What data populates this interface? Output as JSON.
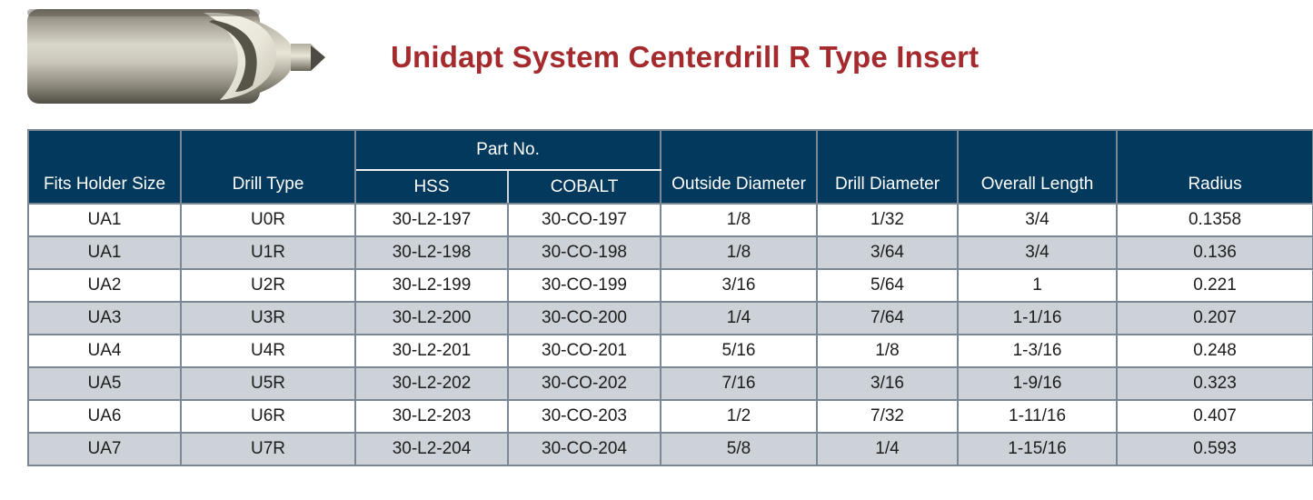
{
  "page": {
    "title": "Unidapt System Centerdrill R Type Insert"
  },
  "image": {
    "name": "centerdrill-r-type-insert-photo",
    "description": "metallic centerdrill insert with radius flute and pilot tip"
  },
  "table": {
    "header": {
      "fits_holder_size": "Fits Holder Size",
      "drill_type": "Drill Type",
      "part_no_group": "Part No.",
      "hss": "HSS",
      "cobalt": "COBALT",
      "outside_diameter": "Outside Diameter",
      "drill_diameter": "Drill Diameter",
      "overall_length": "Overall Length",
      "radius": "Radius"
    },
    "rows": [
      [
        "UA1",
        "U0R",
        "30-L2-197",
        "30-CO-197",
        "1/8",
        "1/32",
        "3/4",
        "0.1358"
      ],
      [
        "UA1",
        "U1R",
        "30-L2-198",
        "30-CO-198",
        "1/8",
        "3/64",
        "3/4",
        "0.136"
      ],
      [
        "UA2",
        "U2R",
        "30-L2-199",
        "30-CO-199",
        "3/16",
        "5/64",
        "1",
        "0.221"
      ],
      [
        "UA3",
        "U3R",
        "30-L2-200",
        "30-CO-200",
        "1/4",
        "7/64",
        "1-1/16",
        "0.207"
      ],
      [
        "UA4",
        "U4R",
        "30-L2-201",
        "30-CO-201",
        "5/16",
        "1/8",
        "1-3/16",
        "0.248"
      ],
      [
        "UA5",
        "U5R",
        "30-L2-202",
        "30-CO-202",
        "7/16",
        "3/16",
        "1-9/16",
        "0.323"
      ],
      [
        "UA6",
        "U6R",
        "30-L2-203",
        "30-CO-203",
        "1/2",
        "7/32",
        "1-11/16",
        "0.407"
      ],
      [
        "UA7",
        "U7R",
        "30-L2-204",
        "30-CO-204",
        "5/8",
        "1/4",
        "1-15/16",
        "0.593"
      ]
    ]
  },
  "colors": {
    "header_bg": "#04395e",
    "row_bg": "#ffffff",
    "row_alt_bg": "#ccd2d8",
    "grid_line": "#7a8795",
    "title_text": "#a52a2e",
    "body_text": "#1d1d1b"
  }
}
